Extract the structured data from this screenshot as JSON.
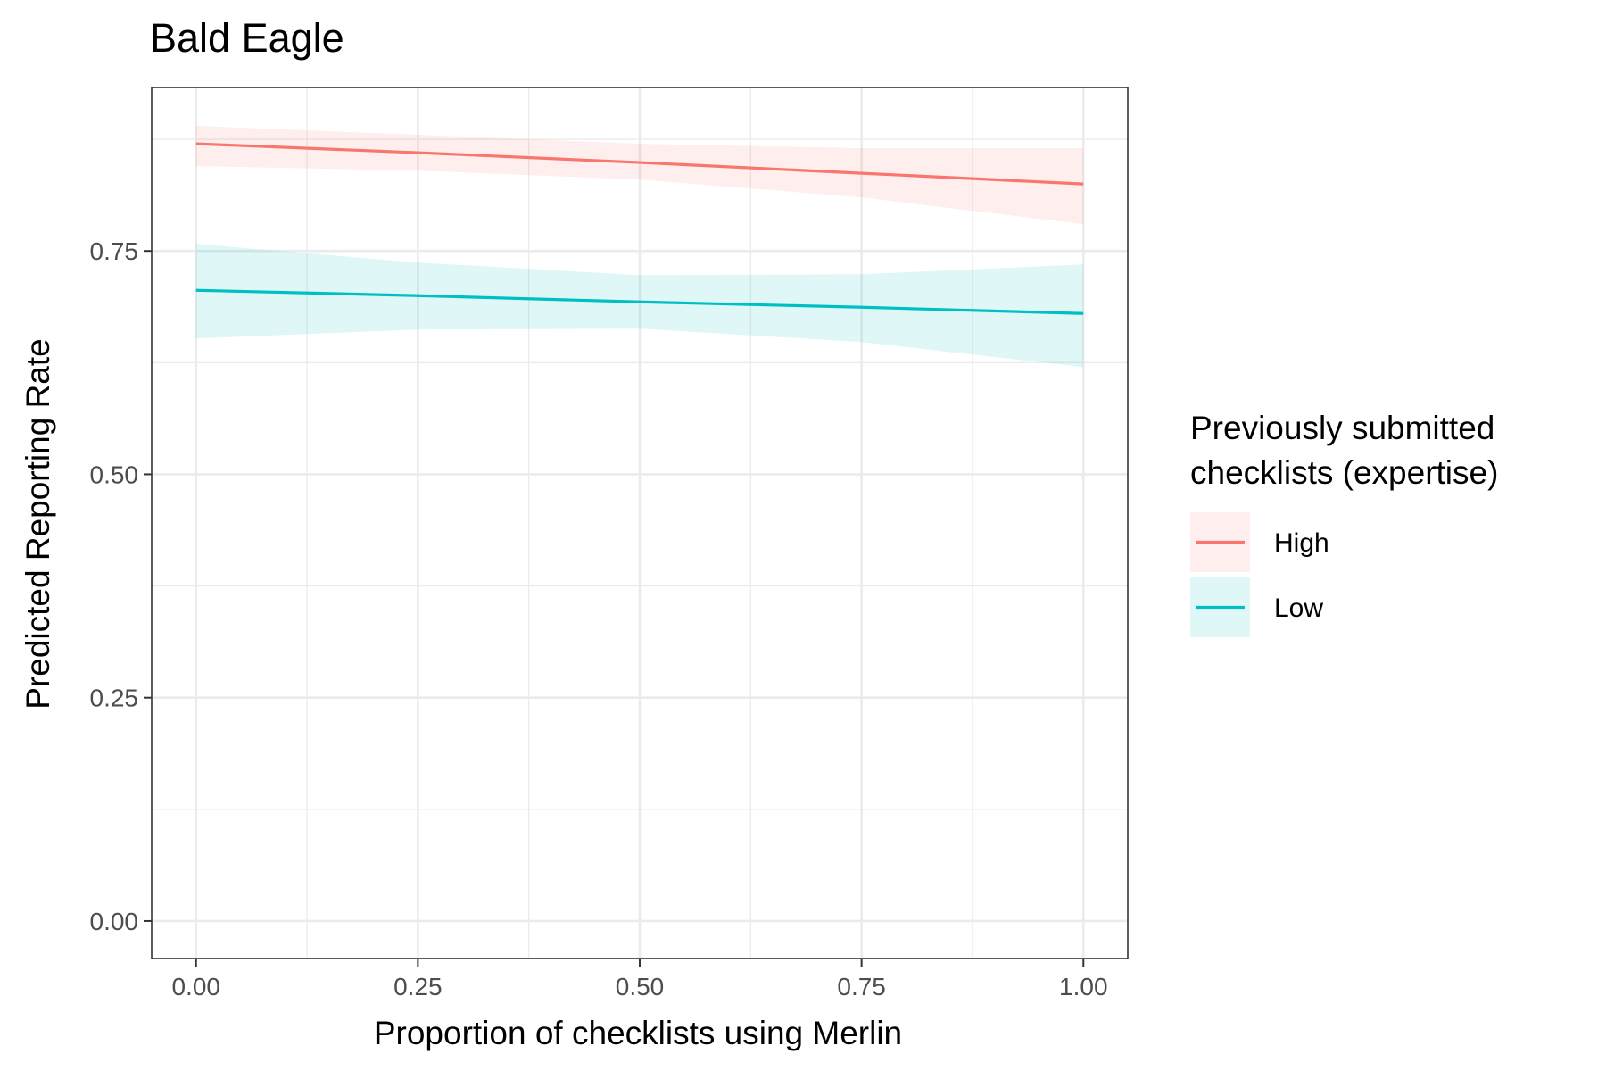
{
  "chart_data": {
    "type": "line",
    "title": "Bald Eagle",
    "xlabel": "Proportion of checklists using Merlin",
    "ylabel": "Predicted Reporting Rate",
    "xlim": [
      -0.05,
      1.05
    ],
    "ylim": [
      -0.042,
      0.933
    ],
    "x_ticks": [
      "0.00",
      "0.25",
      "0.50",
      "0.75",
      "1.00"
    ],
    "y_ticks": [
      "0.00",
      "0.25",
      "0.50",
      "0.75"
    ],
    "grid": true,
    "legend": {
      "title_lines": [
        "Previously submitted",
        "checklists (expertise)"
      ],
      "position": "right"
    },
    "series": [
      {
        "name": "High",
        "color": "#F8766D",
        "x": [
          0.0,
          0.25,
          0.5,
          0.75,
          1.0
        ],
        "y": [
          0.87,
          0.86,
          0.849,
          0.837,
          0.825
        ],
        "lower": [
          0.845,
          0.84,
          0.83,
          0.81,
          0.78
        ],
        "upper": [
          0.89,
          0.88,
          0.87,
          0.865,
          0.865
        ]
      },
      {
        "name": "Low",
        "color": "#00BFC4",
        "x": [
          0.0,
          0.25,
          0.5,
          0.75,
          1.0
        ],
        "y": [
          0.706,
          0.7,
          0.693,
          0.687,
          0.68
        ],
        "lower": [
          0.652,
          0.662,
          0.663,
          0.648,
          0.62
        ],
        "upper": [
          0.758,
          0.737,
          0.723,
          0.724,
          0.735
        ]
      }
    ]
  }
}
